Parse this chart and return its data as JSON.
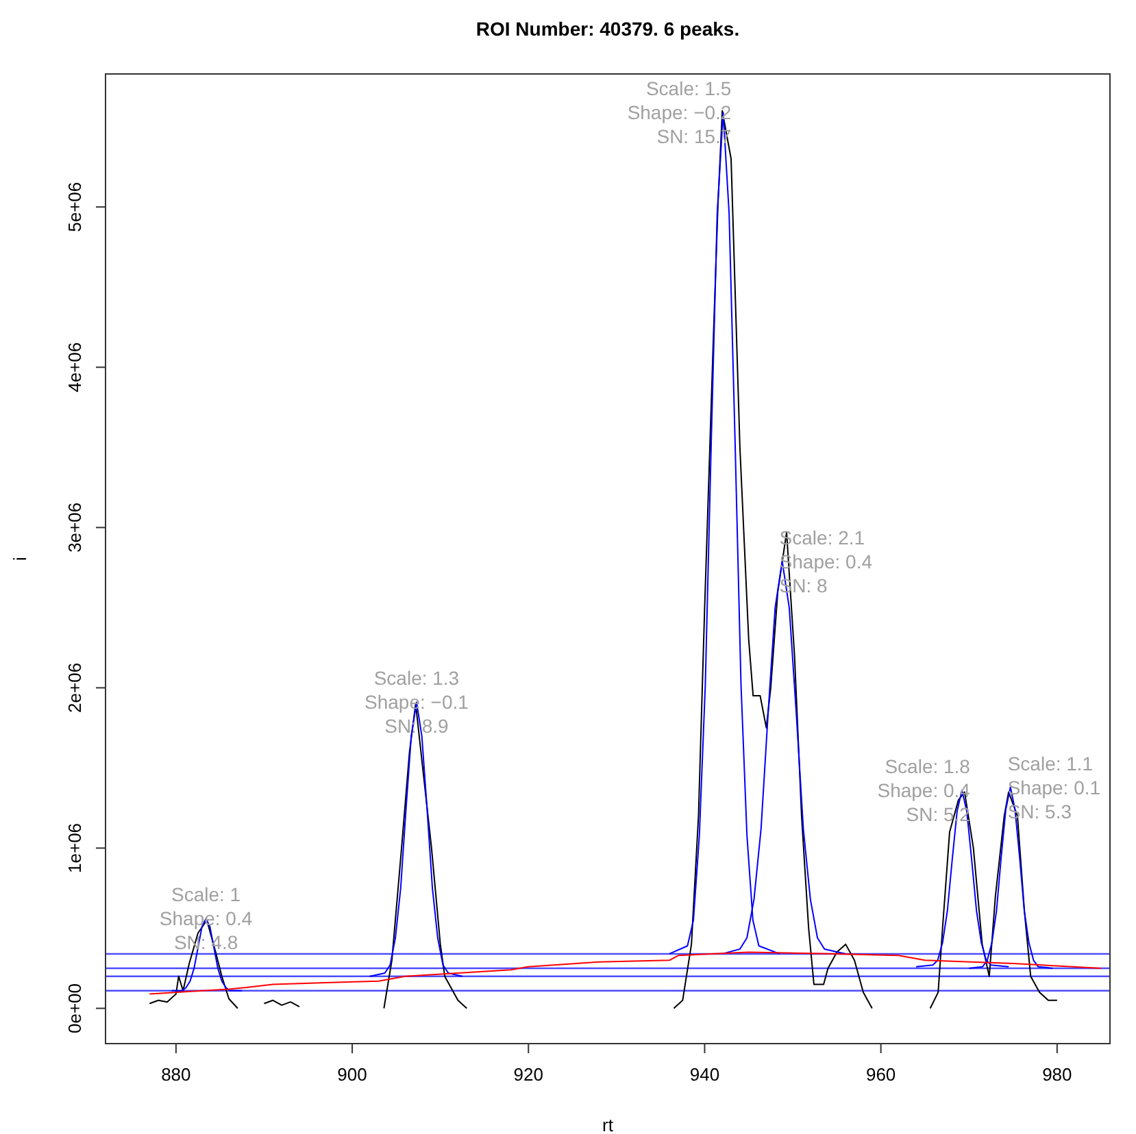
{
  "chart_data": {
    "type": "line",
    "title": "ROI Number: 40379. 6 peaks.",
    "xlabel": "rt",
    "ylabel": "i",
    "xlim": [
      872,
      986
    ],
    "ylim": [
      -220000,
      5830000
    ],
    "xticks": [
      880,
      900,
      920,
      940,
      960,
      980
    ],
    "yticks": [
      {
        "value": 0,
        "label": "0e+00"
      },
      {
        "value": 1000000,
        "label": "1e+06"
      },
      {
        "value": 2000000,
        "label": "2e+06"
      },
      {
        "value": 3000000,
        "label": "3e+06"
      },
      {
        "value": 4000000,
        "label": "4e+06"
      },
      {
        "value": 5000000,
        "label": "5e+06"
      }
    ],
    "grid": false,
    "marker": "none",
    "line_style": "solid",
    "series": [
      {
        "color": "#000000",
        "x": [
          877,
          878,
          879,
          880,
          880.3,
          880.8,
          881.5,
          882.5,
          883.5,
          884.5,
          885.2,
          886,
          887
        ],
        "values": [
          30000,
          50000,
          40000,
          90000,
          200000,
          110000,
          280000,
          470000,
          550000,
          350000,
          200000,
          60000,
          0
        ]
      },
      {
        "color": "#000000",
        "x": [
          890,
          891,
          892,
          893,
          894
        ],
        "values": [
          30000,
          50000,
          20000,
          40000,
          10000
        ]
      },
      {
        "color": "#000000",
        "x": [
          903.6,
          904.5,
          905.6,
          906.5,
          907.2,
          908,
          909,
          910,
          910.5,
          912,
          913
        ],
        "values": [
          0,
          300000,
          1000000,
          1600000,
          1900000,
          1500000,
          1000000,
          400000,
          200000,
          50000,
          0
        ]
      },
      {
        "color": "#000000",
        "x": [
          936.5,
          937.5,
          938.5,
          939.3,
          940,
          941,
          941.5,
          942,
          943,
          944,
          945,
          945.5,
          946.3,
          947,
          947.5,
          948.3,
          949.3,
          950.2,
          951,
          951.8,
          952.4,
          953.5,
          954,
          955,
          956,
          957,
          958,
          959
        ],
        "values": [
          0,
          50000,
          400000,
          1200000,
          2500000,
          4200000,
          5000000,
          5600000,
          5300000,
          3500000,
          2300000,
          1950000,
          1950000,
          1750000,
          2000000,
          2600000,
          2970000,
          2200000,
          1200000,
          500000,
          150000,
          150000,
          250000,
          350000,
          400000,
          300000,
          100000,
          0
        ]
      },
      {
        "color": "#000000",
        "x": [
          965.6,
          966.5,
          967,
          967.8,
          968.8,
          969.5,
          970.5,
          971.5,
          972.3,
          973,
          974,
          974.5,
          975.5,
          976.3,
          977,
          978,
          979,
          980
        ],
        "values": [
          0,
          100000,
          500000,
          1100000,
          1300000,
          1350000,
          1000000,
          400000,
          200000,
          700000,
          1200000,
          1350000,
          1200000,
          600000,
          200000,
          100000,
          50000,
          50000
        ]
      },
      {
        "color": "#0000ff",
        "x": [
          879.5,
          880.7,
          881.15,
          881.6,
          882.05,
          882.5,
          882.95,
          883.4,
          883.85,
          884.3,
          884.75,
          885.2,
          885.65,
          886.1,
          887.5
        ],
        "values": [
          110000,
          110000,
          130000,
          170000,
          250000,
          380000,
          510000,
          560000,
          510000,
          380000,
          250000,
          170000,
          130000,
          110000,
          110000
        ]
      },
      {
        "color": "#0000ff",
        "x": [
          902,
          903.7,
          904.3,
          904.9,
          905.5,
          906.1,
          906.7,
          907.3,
          907.9,
          908.5,
          909.1,
          909.7,
          910.3,
          910.9,
          912.5
        ],
        "values": [
          200000,
          220000,
          270000,
          440000,
          750000,
          1240000,
          1700000,
          1910000,
          1700000,
          1240000,
          750000,
          440000,
          270000,
          220000,
          200000
        ]
      },
      {
        "color": "#0000ff",
        "x": [
          936,
          938.05,
          938.725,
          939.4,
          940.075,
          940.75,
          941.425,
          942.1,
          942.775,
          943.45,
          944.125,
          944.8,
          945.475,
          946.15,
          948.5
        ],
        "values": [
          340000,
          390000,
          550000,
          1080000,
          2020000,
          3540000,
          4960000,
          5590000,
          4960000,
          3540000,
          2020000,
          1080000,
          550000,
          390000,
          340000
        ]
      },
      {
        "color": "#0000ff",
        "x": [
          942,
          944,
          944.8,
          945.6,
          946.4,
          947.2,
          948,
          948.8,
          949.6,
          950.4,
          951.2,
          952,
          952.8,
          953.6,
          956
        ],
        "values": [
          340000,
          370000,
          440000,
          680000,
          1120000,
          1840000,
          2500000,
          2790000,
          2500000,
          1840000,
          1120000,
          680000,
          440000,
          370000,
          340000
        ]
      },
      {
        "color": "#0000ff",
        "x": [
          964,
          965.9,
          966.45,
          967,
          967.55,
          968.1,
          968.65,
          969.2,
          969.75,
          970.3,
          970.85,
          971.4,
          971.95,
          972.5,
          974.5
        ],
        "values": [
          260000,
          270000,
          300000,
          410000,
          610000,
          930000,
          1230000,
          1360000,
          1230000,
          930000,
          610000,
          410000,
          300000,
          270000,
          260000
        ]
      },
      {
        "color": "#0000ff",
        "x": [
          970,
          971.55,
          972.075,
          972.6,
          973.125,
          973.65,
          974.175,
          974.7,
          975.225,
          975.75,
          976.275,
          976.8,
          977.325,
          977.85,
          979.5
        ],
        "values": [
          250000,
          260000,
          300000,
          410000,
          610000,
          940000,
          1240000,
          1380000,
          1240000,
          940000,
          610000,
          410000,
          300000,
          260000,
          250000
        ]
      },
      {
        "color": "#ff0000",
        "x": [
          877,
          886,
          888,
          891,
          897,
          903,
          906,
          912,
          918,
          920,
          928,
          936,
          937,
          945,
          955,
          962,
          965,
          975,
          985
        ],
        "values": [
          90000,
          120000,
          130000,
          150000,
          160000,
          170000,
          200000,
          220000,
          240000,
          260000,
          290000,
          300000,
          330000,
          350000,
          340000,
          330000,
          300000,
          280000,
          250000
        ]
      }
    ],
    "ref_lines": [
      {
        "axis": "y",
        "value": 340000,
        "color": "#4d4dff"
      },
      {
        "axis": "y",
        "value": 250000,
        "color": "#4d4dff"
      },
      {
        "axis": "y",
        "value": 200000,
        "color": "#4d4dff"
      },
      {
        "axis": "y",
        "value": 110000,
        "color": "#4d4dff"
      }
    ],
    "annotations": [
      {
        "text": "Scale: 1\nShape: 0.4\nSN: 4.8",
        "x": 883.4,
        "y": 560000
      },
      {
        "text": "Scale: 1.3\nShape: −0.1\nSN: 8.9",
        "x": 907.3,
        "y": 1910000
      },
      {
        "text": "Scale: 1.5\nShape: −0.2\nSN: 15.7",
        "x": 942.1,
        "y": 5590000
      },
      {
        "text": "Scale: 2.1\nShape: 0.4\nSN: 8",
        "x": 948.8,
        "y": 2790000
      },
      {
        "text": "Scale: 1.8\nShape: 0.4\nSN: 5.2",
        "x": 969.2,
        "y": 1360000
      },
      {
        "text": "Scale: 1.1\nShape: 0.1\nSN: 5.3",
        "x": 974.7,
        "y": 1380000
      }
    ]
  }
}
